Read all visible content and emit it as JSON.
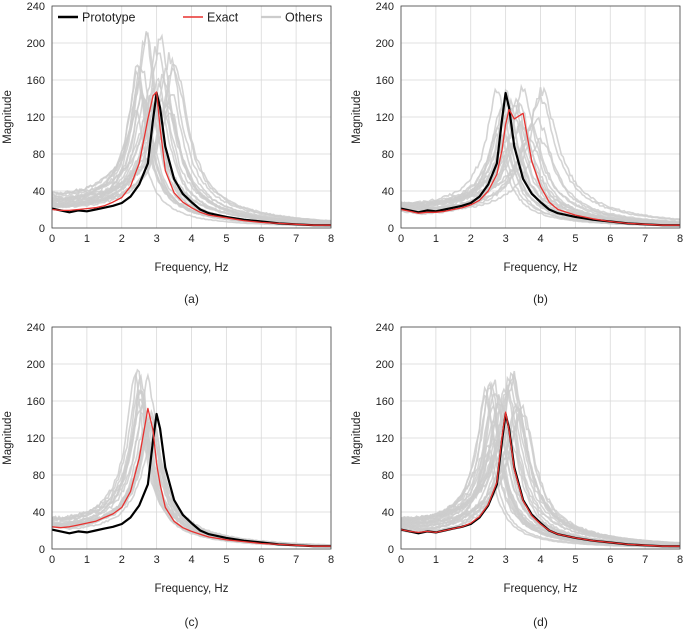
{
  "colors": {
    "prototype": "#000000",
    "exact": "#e8312f",
    "others": "#cccccc"
  },
  "legend": [
    "Prototype",
    "Exact",
    "Others"
  ],
  "chart_data": [
    {
      "type": "line",
      "caption": "(a)",
      "xlabel": "Frequency, Hz",
      "ylabel": "Magnitude",
      "xlim": [
        0,
        8
      ],
      "ylim": [
        0,
        240
      ],
      "xticks": [
        "0",
        "1",
        "2",
        "3",
        "4",
        "5",
        "6",
        "7",
        "8"
      ],
      "yticks": [
        "0",
        "40",
        "80",
        "120",
        "160",
        "200",
        "240"
      ],
      "grid": true,
      "legend_position": "top",
      "x": [
        0,
        0.25,
        0.5,
        0.75,
        1,
        1.25,
        1.5,
        1.75,
        2,
        2.25,
        2.5,
        2.75,
        2.9,
        3,
        3.1,
        3.25,
        3.5,
        3.75,
        4,
        4.25,
        4.5,
        5,
        5.5,
        6,
        6.5,
        7,
        7.5,
        8
      ],
      "series": [
        {
          "name": "Prototype",
          "values": [
            21,
            19,
            17,
            19,
            18,
            20,
            22,
            24,
            27,
            34,
            47,
            70,
            118,
            146,
            130,
            88,
            53,
            37,
            28,
            20,
            16,
            12,
            9,
            7,
            5,
            4,
            3,
            3
          ]
        },
        {
          "name": "Exact",
          "values": [
            20,
            19,
            19,
            20,
            21,
            22,
            24,
            28,
            33,
            45,
            70,
            118,
            143,
            147,
            108,
            62,
            38,
            28,
            22,
            17,
            14,
            11,
            8,
            6,
            5,
            4,
            3,
            3
          ]
        }
      ],
      "others": {
        "shift_min": -0.7,
        "shift_max": 0.6,
        "peak_min": 125,
        "peak_max": 210,
        "count": 26,
        "seed": 11
      }
    },
    {
      "type": "line",
      "caption": "(b)",
      "xlabel": "Frequency, Hz",
      "ylabel": "Magnitude",
      "xlim": [
        0,
        8
      ],
      "ylim": [
        0,
        240
      ],
      "xticks": [
        "0",
        "1",
        "2",
        "3",
        "4",
        "5",
        "6",
        "7",
        "8"
      ],
      "yticks": [
        "0",
        "40",
        "80",
        "120",
        "160",
        "200",
        "240"
      ],
      "grid": true,
      "x": [
        0,
        0.25,
        0.5,
        0.75,
        1,
        1.25,
        1.5,
        1.75,
        2,
        2.25,
        2.5,
        2.75,
        2.9,
        3,
        3.1,
        3.25,
        3.5,
        3.75,
        4,
        4.25,
        4.5,
        5,
        5.5,
        6,
        6.5,
        7,
        7.5,
        8
      ],
      "series": [
        {
          "name": "Prototype",
          "values": [
            21,
            19,
            17,
            19,
            18,
            20,
            22,
            24,
            27,
            34,
            47,
            70,
            118,
            146,
            130,
            88,
            53,
            37,
            28,
            20,
            16,
            12,
            9,
            7,
            5,
            4,
            3,
            3
          ]
        },
        {
          "name": "Exact",
          "values": [
            20,
            18,
            16,
            17,
            17,
            18,
            20,
            22,
            25,
            30,
            40,
            58,
            85,
            112,
            128,
            118,
            124,
            72,
            45,
            28,
            20,
            14,
            10,
            7,
            5,
            4,
            3,
            3
          ]
        }
      ],
      "others": {
        "shift_min": -0.3,
        "shift_max": 1.1,
        "peak_min": 80,
        "peak_max": 150,
        "count": 24,
        "seed": 29
      }
    },
    {
      "type": "line",
      "caption": "(c)",
      "xlabel": "Frequency, Hz",
      "ylabel": "Magnitude",
      "xlim": [
        0,
        8
      ],
      "ylim": [
        0,
        240
      ],
      "xticks": [
        "0",
        "1",
        "2",
        "3",
        "4",
        "5",
        "6",
        "7",
        "8"
      ],
      "yticks": [
        "0",
        "40",
        "80",
        "120",
        "160",
        "200",
        "240"
      ],
      "grid": true,
      "x": [
        0,
        0.25,
        0.5,
        0.75,
        1,
        1.25,
        1.5,
        1.75,
        2,
        2.25,
        2.5,
        2.75,
        2.9,
        3,
        3.1,
        3.25,
        3.5,
        3.75,
        4,
        4.25,
        4.5,
        5,
        5.5,
        6,
        6.5,
        7,
        7.5,
        8
      ],
      "series": [
        {
          "name": "Prototype",
          "values": [
            21,
            19,
            17,
            19,
            18,
            20,
            22,
            24,
            27,
            34,
            47,
            70,
            118,
            146,
            130,
            88,
            53,
            37,
            28,
            20,
            16,
            12,
            9,
            7,
            5,
            4,
            3,
            3
          ]
        },
        {
          "name": "Exact",
          "values": [
            24,
            23,
            24,
            26,
            28,
            30,
            34,
            38,
            45,
            62,
            98,
            152,
            128,
            92,
            70,
            45,
            30,
            23,
            19,
            16,
            13,
            10,
            8,
            6,
            5,
            4,
            3,
            3
          ]
        }
      ],
      "others": {
        "shift_min": -0.6,
        "shift_max": -0.1,
        "peak_min": 110,
        "peak_max": 188,
        "count": 18,
        "seed": 47
      }
    },
    {
      "type": "line",
      "caption": "(d)",
      "xlabel": "Frequency, Hz",
      "ylabel": "Magnitude",
      "xlim": [
        0,
        8
      ],
      "ylim": [
        0,
        240
      ],
      "xticks": [
        "0",
        "1",
        "2",
        "3",
        "4",
        "5",
        "6",
        "7",
        "8"
      ],
      "yticks": [
        "0",
        "40",
        "80",
        "120",
        "160",
        "200",
        "240"
      ],
      "grid": true,
      "x": [
        0,
        0.25,
        0.5,
        0.75,
        1,
        1.25,
        1.5,
        1.75,
        2,
        2.25,
        2.5,
        2.75,
        2.9,
        3,
        3.1,
        3.25,
        3.5,
        3.75,
        4,
        4.25,
        4.5,
        5,
        5.5,
        6,
        6.5,
        7,
        7.5,
        8
      ],
      "series": [
        {
          "name": "Prototype",
          "values": [
            21,
            19,
            17,
            19,
            18,
            20,
            22,
            24,
            27,
            34,
            47,
            70,
            118,
            146,
            130,
            88,
            53,
            37,
            28,
            20,
            16,
            12,
            9,
            7,
            5,
            4,
            3,
            3
          ]
        },
        {
          "name": "Exact",
          "values": [
            21,
            19,
            18,
            19,
            18,
            20,
            22,
            24,
            28,
            35,
            48,
            72,
            122,
            148,
            128,
            86,
            52,
            36,
            27,
            20,
            16,
            12,
            9,
            7,
            5,
            4,
            3,
            3
          ]
        }
      ],
      "others": {
        "shift_min": -0.6,
        "shift_max": 0.6,
        "peak_min": 90,
        "peak_max": 188,
        "count": 30,
        "seed": 83
      }
    }
  ]
}
